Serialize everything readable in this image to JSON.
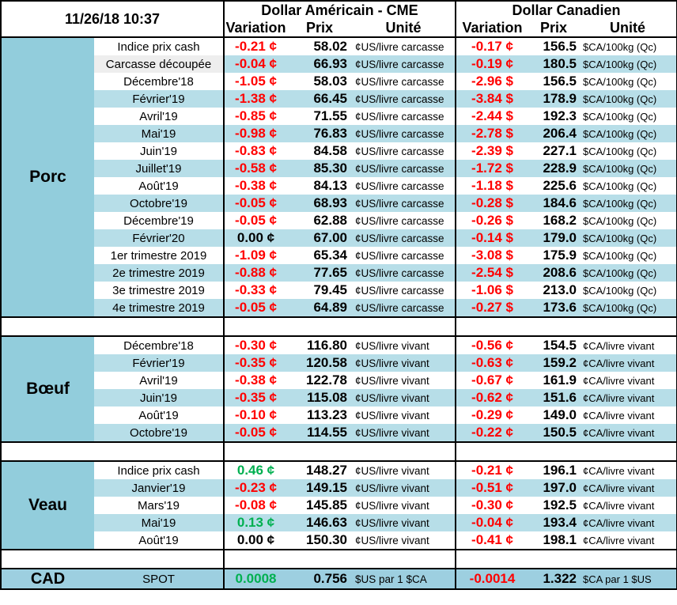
{
  "header": {
    "datetime": "11/26/18 10:37",
    "usd_title": "Dollar Américain - CME",
    "cad_title": "Dollar Canadien",
    "col_variation": "Variation",
    "col_prix": "Prix",
    "col_unite": "Unité"
  },
  "colors": {
    "header_blue": "#92cddc",
    "row_blue": "#b7dee8",
    "negative": "#ff0000",
    "positive": "#00b050"
  },
  "sections": [
    {
      "name": "Porc",
      "rows": [
        {
          "label": "Indice prix cash",
          "usd_var": "-0.21 ¢",
          "usd_price": "58.02",
          "usd_unit": "¢US/livre carcasse",
          "cad_var": "-0.17 ¢",
          "cad_price": "156.5",
          "cad_unit": "$CA/100kg (Qc)"
        },
        {
          "label": "Carcasse découpée",
          "usd_var": "-0.04 ¢",
          "usd_price": "66.93",
          "usd_unit": "¢US/livre carcasse",
          "cad_var": "-0.19 ¢",
          "cad_price": "180.5",
          "cad_unit": "$CA/100kg (Qc)"
        },
        {
          "label": "Décembre'18",
          "usd_var": "-1.05 ¢",
          "usd_price": "58.03",
          "usd_unit": "¢US/livre carcasse",
          "cad_var": "-2.96 $",
          "cad_price": "156.5",
          "cad_unit": "$CA/100kg (Qc)"
        },
        {
          "label": "Février'19",
          "usd_var": "-1.38 ¢",
          "usd_price": "66.45",
          "usd_unit": "¢US/livre carcasse",
          "cad_var": "-3.84 $",
          "cad_price": "178.9",
          "cad_unit": "$CA/100kg (Qc)"
        },
        {
          "label": "Avril'19",
          "usd_var": "-0.85 ¢",
          "usd_price": "71.55",
          "usd_unit": "¢US/livre carcasse",
          "cad_var": "-2.44 $",
          "cad_price": "192.3",
          "cad_unit": "$CA/100kg (Qc)"
        },
        {
          "label": "Mai'19",
          "usd_var": "-0.98 ¢",
          "usd_price": "76.83",
          "usd_unit": "¢US/livre carcasse",
          "cad_var": "-2.78 $",
          "cad_price": "206.4",
          "cad_unit": "$CA/100kg (Qc)"
        },
        {
          "label": "Juin'19",
          "usd_var": "-0.83 ¢",
          "usd_price": "84.58",
          "usd_unit": "¢US/livre carcasse",
          "cad_var": "-2.39 $",
          "cad_price": "227.1",
          "cad_unit": "$CA/100kg (Qc)"
        },
        {
          "label": "Juillet'19",
          "usd_var": "-0.58 ¢",
          "usd_price": "85.30",
          "usd_unit": "¢US/livre carcasse",
          "cad_var": "-1.72 $",
          "cad_price": "228.9",
          "cad_unit": "$CA/100kg (Qc)"
        },
        {
          "label": "Août'19",
          "usd_var": "-0.38 ¢",
          "usd_price": "84.13",
          "usd_unit": "¢US/livre carcasse",
          "cad_var": "-1.18 $",
          "cad_price": "225.6",
          "cad_unit": "$CA/100kg (Qc)"
        },
        {
          "label": "Octobre'19",
          "usd_var": "-0.05 ¢",
          "usd_price": "68.93",
          "usd_unit": "¢US/livre carcasse",
          "cad_var": "-0.28 $",
          "cad_price": "184.6",
          "cad_unit": "$CA/100kg (Qc)"
        },
        {
          "label": "Décembre'19",
          "usd_var": "-0.05 ¢",
          "usd_price": "62.88",
          "usd_unit": "¢US/livre carcasse",
          "cad_var": "-0.26 $",
          "cad_price": "168.2",
          "cad_unit": "$CA/100kg (Qc)"
        },
        {
          "label": "Février'20",
          "usd_var": "0.00 ¢",
          "usd_price": "67.00",
          "usd_unit": "¢US/livre carcasse",
          "cad_var": "-0.14 $",
          "cad_price": "179.0",
          "cad_unit": "$CA/100kg (Qc)"
        },
        {
          "label": "1er trimestre 2019",
          "usd_var": "-1.09 ¢",
          "usd_price": "65.34",
          "usd_unit": "¢US/livre carcasse",
          "cad_var": "-3.08 $",
          "cad_price": "175.9",
          "cad_unit": "$CA/100kg (Qc)"
        },
        {
          "label": "2e trimestre 2019",
          "usd_var": "-0.88 ¢",
          "usd_price": "77.65",
          "usd_unit": "¢US/livre carcasse",
          "cad_var": "-2.54 $",
          "cad_price": "208.6",
          "cad_unit": "$CA/100kg (Qc)"
        },
        {
          "label": "3e trimestre 2019",
          "usd_var": "-0.33 ¢",
          "usd_price": "79.45",
          "usd_unit": "¢US/livre carcasse",
          "cad_var": "-1.06 $",
          "cad_price": "213.0",
          "cad_unit": "$CA/100kg (Qc)"
        },
        {
          "label": "4e trimestre 2019",
          "usd_var": "-0.05 ¢",
          "usd_price": "64.89",
          "usd_unit": "¢US/livre carcasse",
          "cad_var": "-0.27 $",
          "cad_price": "173.6",
          "cad_unit": "$CA/100kg (Qc)"
        }
      ]
    },
    {
      "name": "Bœuf",
      "rows": [
        {
          "label": "Décembre'18",
          "usd_var": "-0.30 ¢",
          "usd_price": "116.80",
          "usd_unit": "¢US/livre vivant",
          "cad_var": "-0.56 ¢",
          "cad_price": "154.5",
          "cad_unit": "¢CA/livre vivant"
        },
        {
          "label": "Février'19",
          "usd_var": "-0.35 ¢",
          "usd_price": "120.58",
          "usd_unit": "¢US/livre vivant",
          "cad_var": "-0.63 ¢",
          "cad_price": "159.2",
          "cad_unit": "¢CA/livre vivant"
        },
        {
          "label": "Avril'19",
          "usd_var": "-0.38 ¢",
          "usd_price": "122.78",
          "usd_unit": "¢US/livre vivant",
          "cad_var": "-0.67 ¢",
          "cad_price": "161.9",
          "cad_unit": "¢CA/livre vivant"
        },
        {
          "label": "Juin'19",
          "usd_var": "-0.35 ¢",
          "usd_price": "115.08",
          "usd_unit": "¢US/livre vivant",
          "cad_var": "-0.62 ¢",
          "cad_price": "151.6",
          "cad_unit": "¢CA/livre vivant"
        },
        {
          "label": "Août'19",
          "usd_var": "-0.10 ¢",
          "usd_price": "113.23",
          "usd_unit": "¢US/livre vivant",
          "cad_var": "-0.29 ¢",
          "cad_price": "149.0",
          "cad_unit": "¢CA/livre vivant"
        },
        {
          "label": "Octobre'19",
          "usd_var": "-0.05 ¢",
          "usd_price": "114.55",
          "usd_unit": "¢US/livre vivant",
          "cad_var": "-0.22 ¢",
          "cad_price": "150.5",
          "cad_unit": "¢CA/livre vivant"
        }
      ]
    },
    {
      "name": "Veau",
      "rows": [
        {
          "label": "Indice prix cash",
          "usd_var": "0.46 ¢",
          "usd_price": "148.27",
          "usd_unit": "¢US/livre vivant",
          "cad_var": "-0.21 ¢",
          "cad_price": "196.1",
          "cad_unit": "¢CA/livre vivant"
        },
        {
          "label": "Janvier'19",
          "usd_var": "-0.23 ¢",
          "usd_price": "149.15",
          "usd_unit": "¢US/livre vivant",
          "cad_var": "-0.51 ¢",
          "cad_price": "197.0",
          "cad_unit": "¢CA/livre vivant"
        },
        {
          "label": "Mars'19",
          "usd_var": "-0.08 ¢",
          "usd_price": "145.85",
          "usd_unit": "¢US/livre vivant",
          "cad_var": "-0.30 ¢",
          "cad_price": "192.5",
          "cad_unit": "¢CA/livre vivant"
        },
        {
          "label": "Mai'19",
          "usd_var": "0.13 ¢",
          "usd_price": "146.63",
          "usd_unit": "¢US/livre vivant",
          "cad_var": "-0.04 ¢",
          "cad_price": "193.4",
          "cad_unit": "¢CA/livre vivant"
        },
        {
          "label": "Août'19",
          "usd_var": "0.00 ¢",
          "usd_price": "150.30",
          "usd_unit": "¢US/livre vivant",
          "cad_var": "-0.41 ¢",
          "cad_price": "198.1",
          "cad_unit": "¢CA/livre vivant"
        }
      ]
    }
  ],
  "cad": {
    "name": "CAD",
    "label": "SPOT",
    "usd_var": "0.0008",
    "usd_price": "0.756",
    "usd_unit": "$US par 1 $CA",
    "cad_var": "-0.0014",
    "cad_price": "1.322",
    "cad_unit": "$CA par 1 $US"
  }
}
